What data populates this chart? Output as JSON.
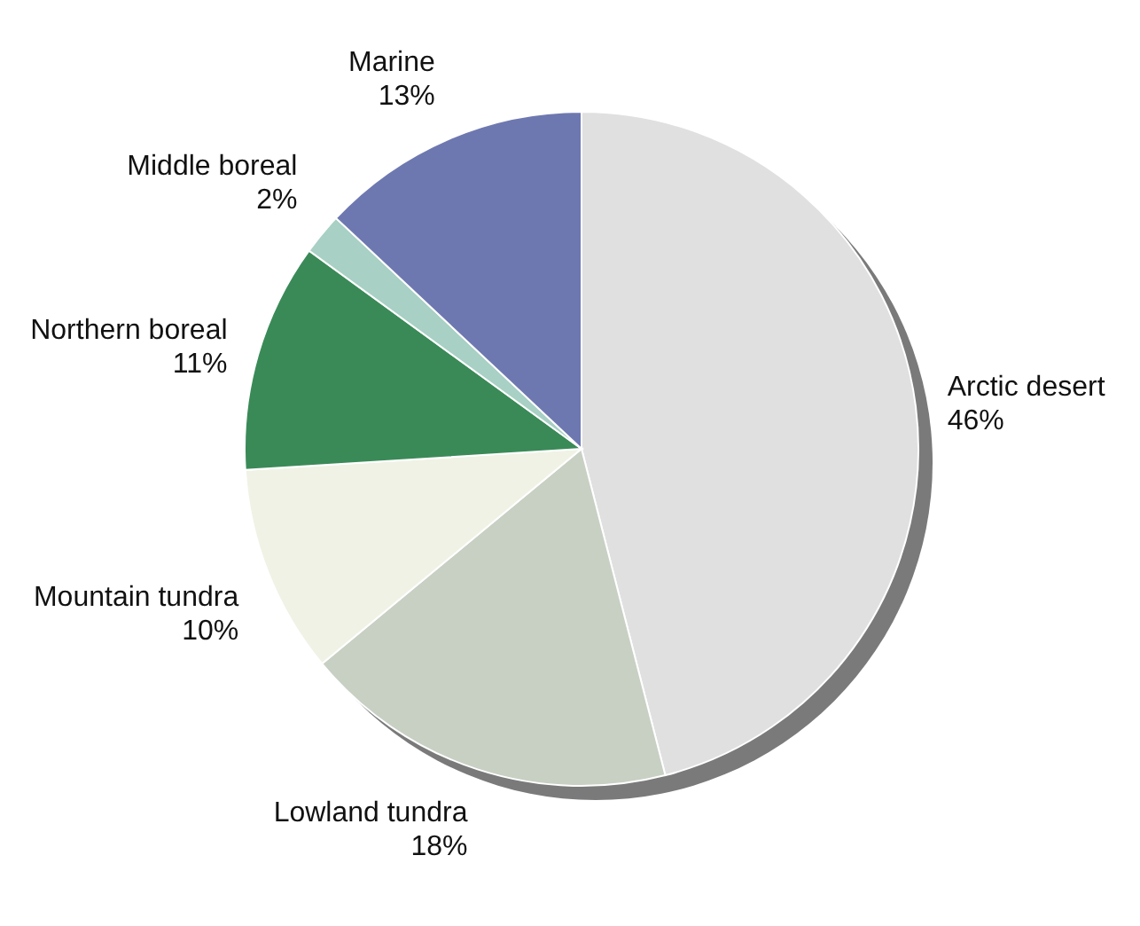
{
  "chart_data": {
    "type": "pie",
    "categories": [
      "Arctic desert",
      "Lowland tundra",
      "Mountain tundra",
      "Northern boreal",
      "Middle boreal",
      "Marine"
    ],
    "values": [
      46,
      18,
      10,
      11,
      2,
      13
    ],
    "value_labels": [
      "46%",
      "18%",
      "10%",
      "11%",
      "2%",
      "13%"
    ],
    "colors": [
      "#e0e0e0",
      "#c8d0c4",
      "#f1f2e6",
      "#3a8a58",
      "#a8d0c4",
      "#6e78b0"
    ]
  }
}
